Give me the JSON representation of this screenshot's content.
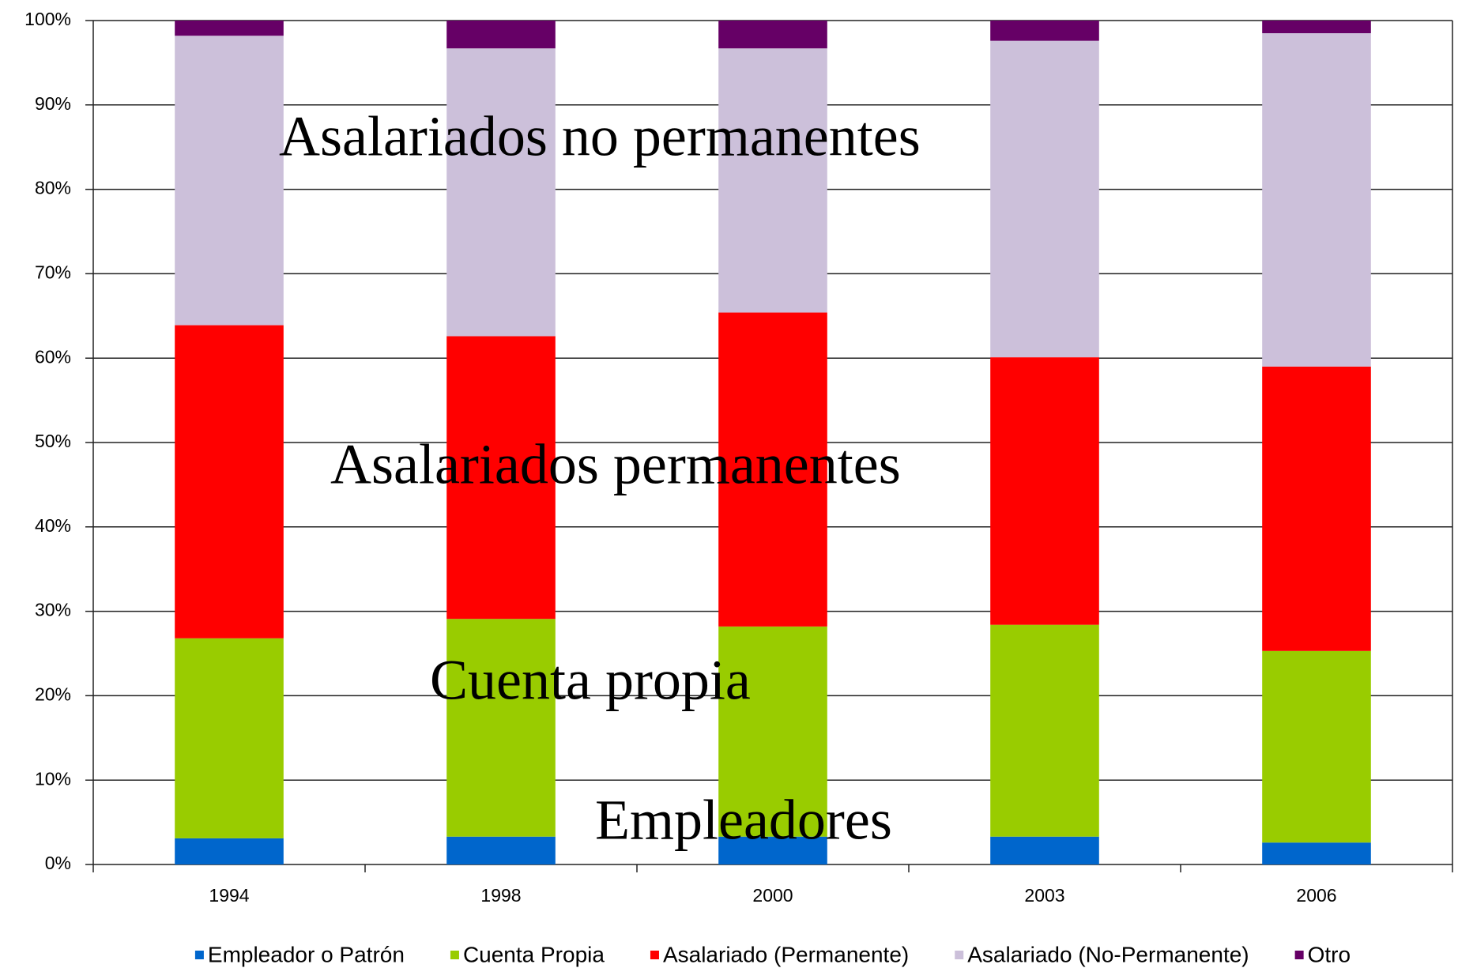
{
  "chart_data": {
    "type": "stacked_bar",
    "categories": [
      "1994",
      "1998",
      "2000",
      "2003",
      "2006"
    ],
    "series": [
      {
        "name": "Empleador o Patrón",
        "color": "#0066cc",
        "values": [
          3.1,
          3.3,
          3.3,
          3.3,
          2.6
        ]
      },
      {
        "name": "Cuenta Propia",
        "color": "#99cc00",
        "values": [
          23.7,
          25.8,
          24.9,
          25.1,
          22.7
        ]
      },
      {
        "name": "Asalariado (Permanente)",
        "color": "#ff0000",
        "values": [
          37.1,
          33.5,
          37.2,
          31.7,
          33.7
        ]
      },
      {
        "name": "Asalariado (No-Permanente)",
        "color": "#ccc0da",
        "values": [
          34.3,
          34.1,
          31.3,
          37.5,
          39.5
        ]
      },
      {
        "name": "Otro",
        "color": "#660066",
        "values": [
          1.8,
          3.3,
          3.3,
          2.4,
          1.5
        ]
      }
    ],
    "ylim": [
      0,
      100
    ],
    "yticks": [
      {
        "value": 0,
        "label": "0%"
      },
      {
        "value": 10,
        "label": "10%"
      },
      {
        "value": 20,
        "label": "20%"
      },
      {
        "value": 30,
        "label": "30%"
      },
      {
        "value": 40,
        "label": "40%"
      },
      {
        "value": 50,
        "label": "50%"
      },
      {
        "value": 60,
        "label": "60%"
      },
      {
        "value": 70,
        "label": "70%"
      },
      {
        "value": 80,
        "label": "80%"
      },
      {
        "value": 90,
        "label": "90%"
      },
      {
        "value": 100,
        "label": "100%"
      }
    ],
    "grid": true,
    "legend": "bottom",
    "annotations": [
      "Asalariados no permanentes",
      "Asalariados permanentes",
      "Cuenta propia",
      "Empleadores"
    ]
  }
}
